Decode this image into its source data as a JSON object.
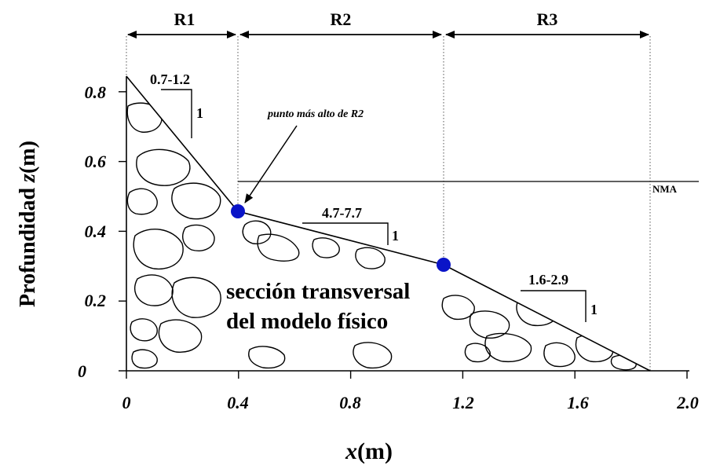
{
  "diagram": {
    "regions": [
      {
        "label": "R1"
      },
      {
        "label": "R2"
      },
      {
        "label": "R3"
      }
    ],
    "x_axis": {
      "label_var": "x",
      "label_unit": "(m)",
      "ticks": [
        "0",
        "0.4",
        "0.8",
        "1.2",
        "1.6",
        "2.0"
      ]
    },
    "y_axis": {
      "label_prefix": "Profundidad",
      "label_var": "z",
      "label_unit": "(m)",
      "ticks": [
        "0",
        "0.2",
        "0.4",
        "0.6",
        "0.8"
      ]
    },
    "slopes": [
      {
        "run": "0.7-1.2",
        "rise": "1"
      },
      {
        "run": "4.7-7.7",
        "rise": "1"
      },
      {
        "run": "1.6-2.9",
        "rise": "1"
      }
    ],
    "water_level_label": "NMA",
    "annotation": "punto más alto de R2",
    "section_title_line1": "sección transversal",
    "section_title_line2": "del modelo físico",
    "profile_points": [
      {
        "x": 0,
        "z": 0.84
      },
      {
        "x": 0.4,
        "z": 0.45
      },
      {
        "x": 1.13,
        "z": 0.3
      },
      {
        "x": 1.87,
        "z": 0
      }
    ],
    "marked_points": [
      {
        "x": 0.4,
        "z": 0.45
      },
      {
        "x": 1.13,
        "z": 0.3
      }
    ],
    "water_level_z": 0.54,
    "colors": {
      "point": "#0a14c8",
      "line": "#000000"
    }
  }
}
